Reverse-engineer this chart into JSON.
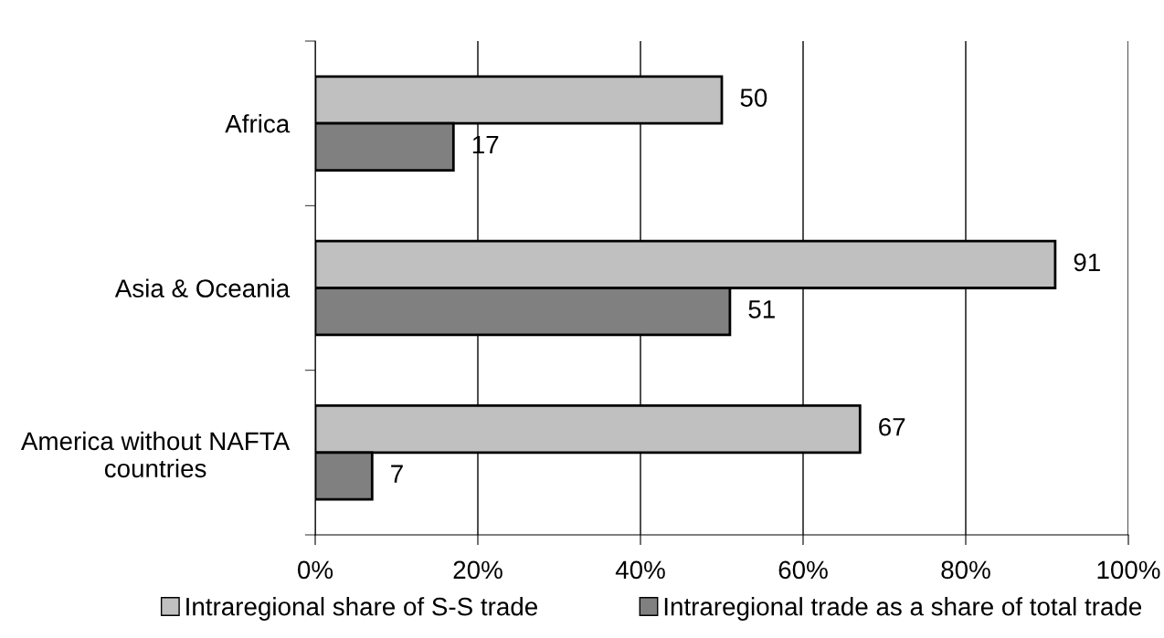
{
  "chart_data": {
    "type": "bar",
    "orientation": "horizontal",
    "categories": [
      "Africa",
      "Asia & Oceania",
      "America without NAFTA\ncountries"
    ],
    "series": [
      {
        "name": "Intraregional share of S-S trade",
        "color": "#c0c0c0",
        "values": [
          50,
          91,
          67
        ]
      },
      {
        "name": "Intraregional trade as a share of total trade",
        "color": "#808080",
        "values": [
          17,
          51,
          7
        ]
      }
    ],
    "xlim": [
      0,
      100
    ],
    "xticks": [
      {
        "value": 0,
        "label": "0%"
      },
      {
        "value": 20,
        "label": "20%"
      },
      {
        "value": 40,
        "label": "40%"
      },
      {
        "value": 60,
        "label": "60%"
      },
      {
        "value": 80,
        "label": "80%"
      },
      {
        "value": 100,
        "label": "100%"
      }
    ],
    "grid": "x",
    "legend": "bottom",
    "data_labels": true
  }
}
